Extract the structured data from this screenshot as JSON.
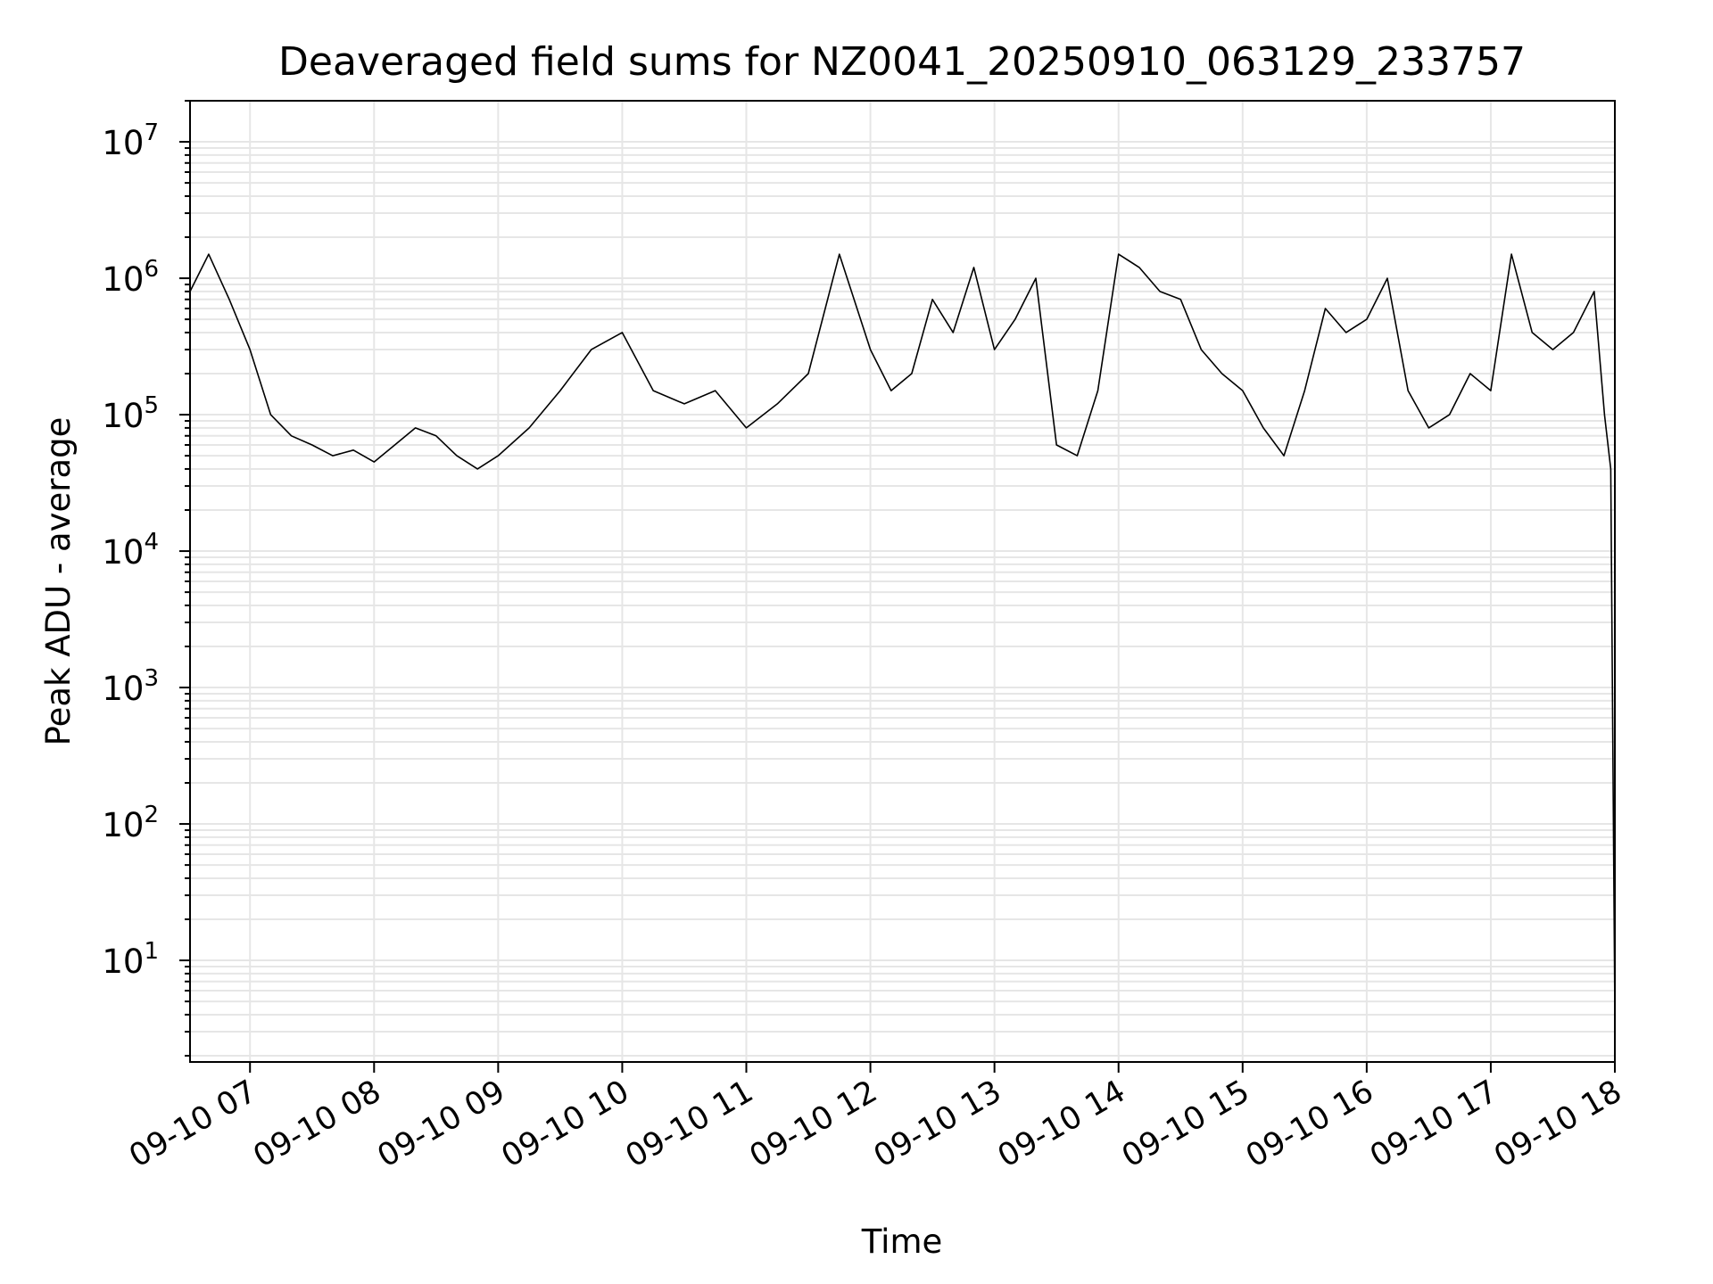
{
  "chart_data": {
    "type": "line",
    "title": "Deaveraged field sums for NZ0041_20250910_063129_233757",
    "xlabel": "Time",
    "ylabel": "Peak ADU - average",
    "yscale": "log",
    "ylim": [
      1.8,
      20000000
    ],
    "xlim": [
      "2025-09-10 06:31",
      "2025-09-10 18:00"
    ],
    "x_ticks": [
      "09-10 07",
      "09-10 08",
      "09-10 09",
      "09-10 10",
      "09-10 11",
      "09-10 12",
      "09-10 13",
      "09-10 14",
      "09-10 15",
      "09-10 16",
      "09-10 17",
      "09-10 18"
    ],
    "y_ticks": [
      {
        "base": "10",
        "exp": "1"
      },
      {
        "base": "10",
        "exp": "2"
      },
      {
        "base": "10",
        "exp": "3"
      },
      {
        "base": "10",
        "exp": "4"
      },
      {
        "base": "10",
        "exp": "5"
      },
      {
        "base": "10",
        "exp": "6"
      },
      {
        "base": "10",
        "exp": "7"
      }
    ],
    "grid": true,
    "legend": "none",
    "line_color": "#000000",
    "grid_color": "#e6e6e6",
    "series": [
      {
        "x": [
          "2025-09-10 06:31",
          "2025-09-10 06:40",
          "2025-09-10 06:50",
          "2025-09-10 07:00",
          "2025-09-10 07:10",
          "2025-09-10 07:20",
          "2025-09-10 07:30",
          "2025-09-10 07:40",
          "2025-09-10 07:50",
          "2025-09-10 08:00",
          "2025-09-10 08:10",
          "2025-09-10 08:20",
          "2025-09-10 08:30",
          "2025-09-10 08:40",
          "2025-09-10 08:50",
          "2025-09-10 09:00",
          "2025-09-10 09:15",
          "2025-09-10 09:30",
          "2025-09-10 09:45",
          "2025-09-10 10:00",
          "2025-09-10 10:15",
          "2025-09-10 10:30",
          "2025-09-10 10:45",
          "2025-09-10 11:00",
          "2025-09-10 11:15",
          "2025-09-10 11:30",
          "2025-09-10 11:45",
          "2025-09-10 12:00",
          "2025-09-10 12:10",
          "2025-09-10 12:20",
          "2025-09-10 12:30",
          "2025-09-10 12:40",
          "2025-09-10 12:50",
          "2025-09-10 13:00",
          "2025-09-10 13:10",
          "2025-09-10 13:20",
          "2025-09-10 13:30",
          "2025-09-10 13:40",
          "2025-09-10 13:50",
          "2025-09-10 14:00",
          "2025-09-10 14:10",
          "2025-09-10 14:20",
          "2025-09-10 14:30",
          "2025-09-10 14:40",
          "2025-09-10 14:50",
          "2025-09-10 15:00",
          "2025-09-10 15:10",
          "2025-09-10 15:20",
          "2025-09-10 15:30",
          "2025-09-10 15:40",
          "2025-09-10 15:50",
          "2025-09-10 16:00",
          "2025-09-10 16:10",
          "2025-09-10 16:20",
          "2025-09-10 16:30",
          "2025-09-10 16:40",
          "2025-09-10 16:50",
          "2025-09-10 17:00",
          "2025-09-10 17:10",
          "2025-09-10 17:20",
          "2025-09-10 17:30",
          "2025-09-10 17:40",
          "2025-09-10 17:50",
          "2025-09-10 17:55",
          "2025-09-10 17:58",
          "2025-09-10 18:00"
        ],
        "values": [
          800000,
          1500000,
          700000,
          300000,
          100000,
          70000,
          60000,
          50000,
          55000,
          45000,
          60000,
          80000,
          70000,
          50000,
          40000,
          50000,
          80000,
          150000,
          300000,
          400000,
          150000,
          120000,
          150000,
          80000,
          120000,
          200000,
          1500000,
          300000,
          150000,
          200000,
          700000,
          400000,
          1200000,
          300000,
          500000,
          1000000,
          60000,
          50000,
          150000,
          1500000,
          1200000,
          800000,
          700000,
          300000,
          200000,
          150000,
          80000,
          50000,
          150000,
          600000,
          400000,
          500000,
          1000000,
          150000,
          80000,
          100000,
          200000,
          150000,
          1500000,
          400000,
          300000,
          400000,
          800000,
          100000,
          40000,
          4
        ]
      }
    ]
  }
}
